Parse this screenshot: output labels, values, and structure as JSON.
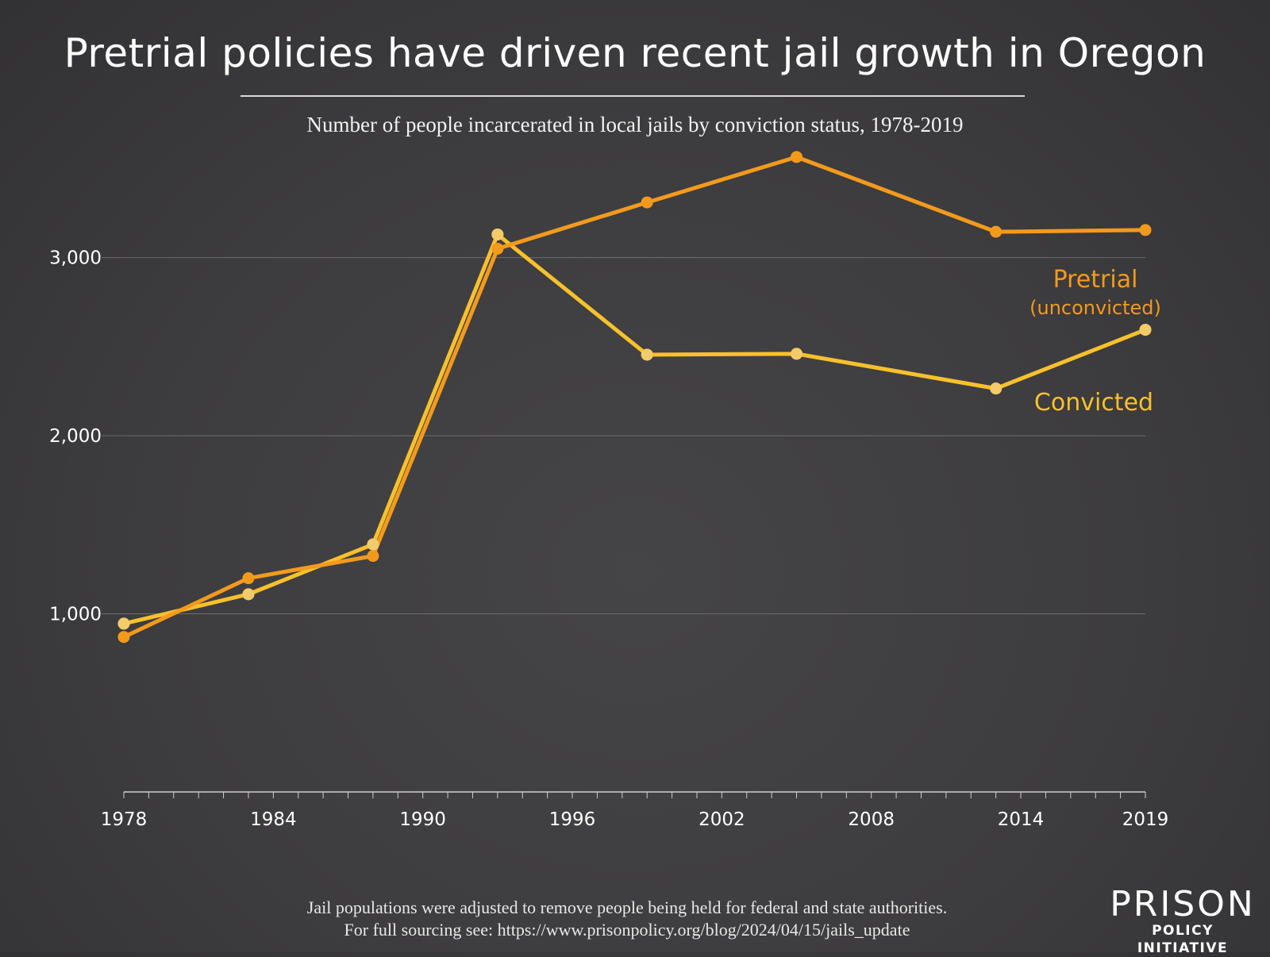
{
  "header": {
    "title": "Pretrial policies have driven recent jail growth in Oregon",
    "subtitle": "Number of people incarcerated in local jails by conviction status, 1978-2019"
  },
  "footer": {
    "note_line1": "Jail populations were adjusted to remove people being held for federal and state authorities.",
    "note_line2": "For full sourcing see: https://www.prisonpolicy.org/blog/2024/04/15/jails_update",
    "logo_top": "PRISON",
    "logo_bottom": "POLICY INITIATIVE"
  },
  "chart_data": {
    "type": "line",
    "title": "Pretrial policies have driven recent jail growth in Oregon",
    "subtitle": "Number of people incarcerated in local jails by conviction status, 1978-2019",
    "xlabel": "",
    "ylabel": "",
    "xlim": [
      1978,
      2019
    ],
    "ylim": [
      0,
      3600
    ],
    "x_ticks": [
      1978,
      1984,
      1990,
      1996,
      2002,
      2008,
      2014,
      2019
    ],
    "y_ticks": [
      1000,
      2000,
      3000
    ],
    "y_tick_labels": [
      "1,000",
      "2,000",
      "3,000"
    ],
    "grid": "horizontal",
    "series": [
      {
        "name": "Pretrial",
        "label_line1": "Pretrial",
        "label_line2": "(unconvicted)",
        "color": "#f39a1d",
        "x": [
          1978,
          1983,
          1988,
          1993,
          1999,
          2005,
          2013,
          2019
        ],
        "values": [
          870,
          1200,
          1325,
          3050,
          3310,
          3565,
          3145,
          3155
        ]
      },
      {
        "name": "Convicted",
        "label_line1": "Convicted",
        "color": "#f7c12c",
        "x": [
          1978,
          1983,
          1988,
          1993,
          1999,
          2005,
          2013,
          2019
        ],
        "values": [
          945,
          1110,
          1390,
          3130,
          2455,
          2460,
          2265,
          2595
        ]
      }
    ]
  }
}
